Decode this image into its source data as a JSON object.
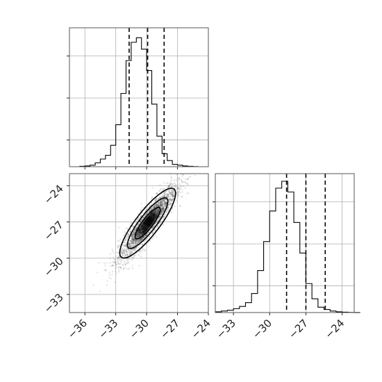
{
  "chart_data": [
    {
      "type": "histogram",
      "panel": "top-left",
      "bins": [
        -36.5,
        -36.0,
        -35.5,
        -35.0,
        -34.5,
        -34.0,
        -33.5,
        -33.0,
        -32.5,
        -32.0,
        -31.5,
        -31.0,
        -30.5,
        -30.0,
        -29.5,
        -29.0,
        -28.5,
        -28.0,
        -27.5,
        -27.0,
        -26.5,
        -26.0,
        -25.5,
        -25.0,
        -24.5
      ],
      "counts": [
        0.5,
        1,
        2,
        5,
        10,
        15,
        28,
        55,
        96,
        139,
        163,
        169,
        154,
        126,
        82,
        40,
        17,
        8,
        3,
        2,
        1,
        0.5,
        0.2,
        0
      ],
      "xlim": [
        -37.5,
        -24.0
      ],
      "ymax": 182,
      "quantiles": [
        -31.7,
        -29.9,
        -28.3
      ],
      "grid": true
    },
    {
      "type": "scatter",
      "panel": "bottom-left",
      "xlim": [
        -37.5,
        -24.0
      ],
      "ylim": [
        -34.5,
        -23.0
      ],
      "xticks": [
        "−36",
        "−33",
        "−30",
        "−27",
        "−24"
      ],
      "xtick_values": [
        -36,
        -33,
        -30,
        -27,
        -24
      ],
      "yticks": [
        "−24",
        "−27",
        "−30",
        "−33"
      ],
      "ytick_values": [
        -24,
        -27,
        -30,
        -33
      ],
      "center": [
        -29.9,
        -27.1
      ],
      "std": [
        1.4,
        1.55
      ],
      "correlation": 0.9,
      "grid": true
    },
    {
      "type": "histogram",
      "panel": "bottom-right",
      "bins": [
        -34.5,
        -34.0,
        -33.5,
        -33.0,
        -32.5,
        -32.0,
        -31.5,
        -31.0,
        -30.5,
        -30.0,
        -29.5,
        -29.0,
        -28.5,
        -28.0,
        -27.5,
        -27.0,
        -26.5,
        -26.0,
        -25.5,
        -25.0,
        -24.5,
        -24.0,
        -23.5,
        -23.0,
        -22.5
      ],
      "counts": [
        1,
        2,
        3,
        5,
        8,
        13,
        25,
        55,
        93,
        133,
        163,
        172,
        158,
        118,
        78,
        38,
        18,
        7,
        4,
        2,
        1,
        0.5,
        0.2,
        0
      ],
      "xlim": [
        -34.5,
        -23.0
      ],
      "ymax": 182,
      "quantiles": [
        -28.6,
        -27.0,
        -25.4
      ],
      "xticks": [
        "−33",
        "−30",
        "−27",
        "−24"
      ],
      "xtick_values": [
        -33,
        -30,
        -27,
        -24
      ],
      "grid": true
    }
  ]
}
